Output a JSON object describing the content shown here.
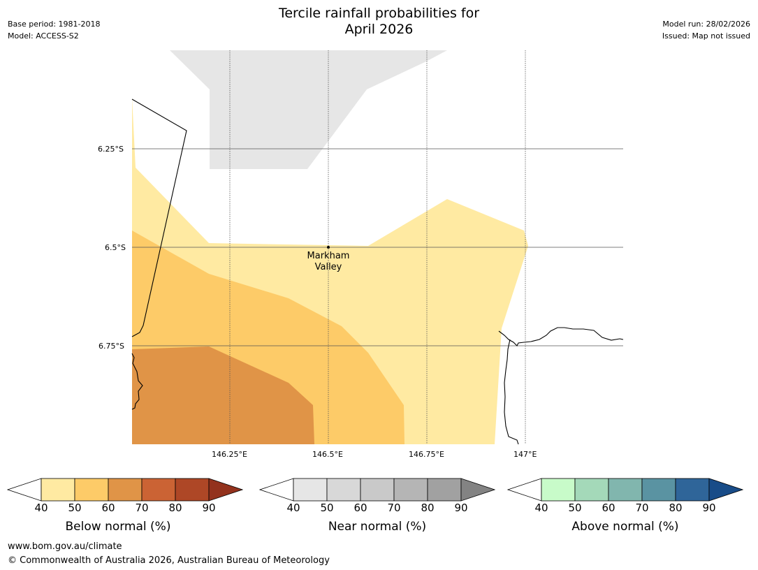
{
  "header": {
    "title_line1": "Tercile rainfall probabilities for",
    "title_line2": "April 2026",
    "base_period": "Base period: 1981-2018",
    "model": "Model: ACCESS-S2",
    "model_run": "Model run: 28/02/2026",
    "issued": "Issued: Map not issued"
  },
  "map": {
    "lat_labels": [
      "6.25°S",
      "6.5°S",
      "6.75°S"
    ],
    "lon_labels": [
      "146.25°E",
      "146.5°E",
      "146.75°E",
      "147°E"
    ],
    "place_label_line1": "Markham",
    "place_label_line2": "Valley",
    "colors": {
      "below_40_50": "#ffeaa2",
      "below_50_60": "#fdcb68",
      "below_60_70": "#e09447",
      "near_40_50": "#e6e6e6"
    }
  },
  "legends": [
    {
      "label": "Below normal (%)",
      "ticks": [
        "40",
        "50",
        "60",
        "70",
        "80",
        "90"
      ],
      "colors": [
        "#ffeaa2",
        "#fdcb68",
        "#e09447",
        "#cb6334",
        "#ae4726",
        "#93321d"
      ]
    },
    {
      "label": "Near normal (%)",
      "ticks": [
        "40",
        "50",
        "60",
        "70",
        "80",
        "90"
      ],
      "colors": [
        "#e6e6e6",
        "#d8d8d8",
        "#c9c9c9",
        "#b5b5b5",
        "#a1a1a1",
        "#838383"
      ]
    },
    {
      "label": "Above normal (%)",
      "ticks": [
        "40",
        "50",
        "60",
        "70",
        "80",
        "90"
      ],
      "colors": [
        "#c8fbc9",
        "#a4d9b9",
        "#81b6ae",
        "#5a93a2",
        "#2f6599",
        "#184c88"
      ]
    }
  ],
  "footer": {
    "url": "www.bom.gov.au/climate",
    "copyright": "© Commonwealth of Australia 2026, Australian Bureau of Meteorology"
  }
}
